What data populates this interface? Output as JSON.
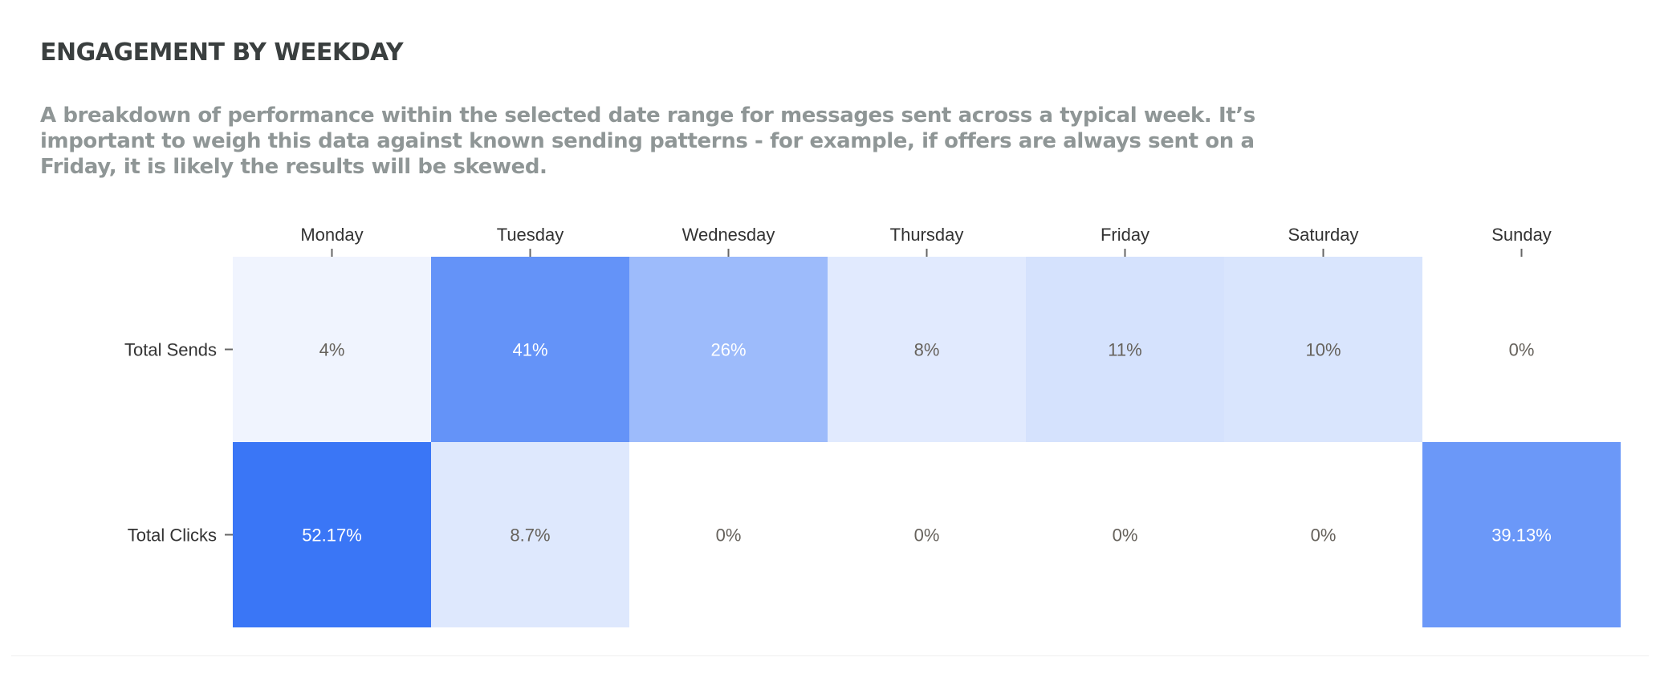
{
  "header": {
    "title": "ENGAGEMENT BY WEEKDAY",
    "description": "A breakdown of performance within the selected date range for messages sent across a typical week. It’s important to weigh this data against known sending patterns - for example, if offers are always sent on a Friday, it is likely the results will be skewed."
  },
  "chart_data": {
    "type": "heatmap",
    "x_categories": [
      "Monday",
      "Tuesday",
      "Wednesday",
      "Thursday",
      "Friday",
      "Saturday",
      "Sunday"
    ],
    "y_categories": [
      "Total Sends",
      "Total Clicks"
    ],
    "values": [
      [
        4,
        41,
        26,
        8,
        11,
        10,
        0
      ],
      [
        52.17,
        8.7,
        0,
        0,
        0,
        0,
        39.13
      ]
    ],
    "labels": [
      [
        "4%",
        "41%",
        "26%",
        "8%",
        "11%",
        "10%",
        "0%"
      ],
      [
        "52.17%",
        "8.7%",
        "0%",
        "0%",
        "0%",
        "0%",
        "39.13%"
      ]
    ],
    "value_range": [
      0,
      52.17
    ],
    "color_scale": {
      "low": "#ffffff",
      "high": "#3a76f6"
    },
    "label_colors": {
      "dark": "#66625c",
      "light": "#ffffff"
    },
    "x_axis_position": "top",
    "grid": false,
    "legend": "none"
  }
}
